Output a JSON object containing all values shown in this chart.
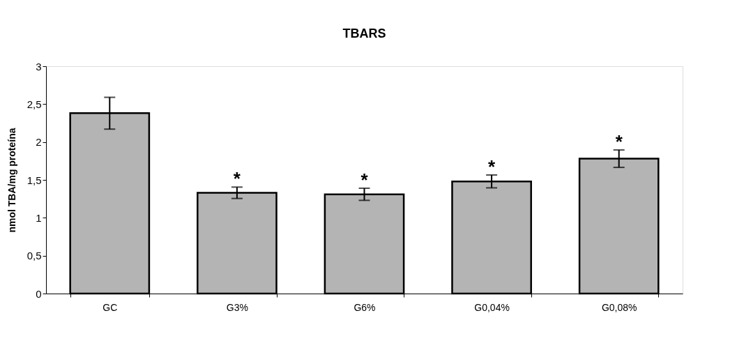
{
  "chart_data": {
    "type": "bar",
    "title": "TBARS",
    "ylabel": "nmol TBA/mg proteína",
    "categories": [
      "GC",
      "G3%",
      "G6%",
      "G0,04%",
      "G0,08%"
    ],
    "values": [
      2.38,
      1.33,
      1.31,
      1.48,
      1.78
    ],
    "errors": [
      0.21,
      0.075,
      0.08,
      0.085,
      0.115
    ],
    "color": "#b4b4b4",
    "ylim": [
      0,
      3
    ],
    "yticks": [
      0,
      {
        "value": 0.5,
        "label": "0,5"
      },
      1,
      {
        "value": 1.5,
        "label": "1,5"
      },
      2,
      {
        "value": 2.5,
        "label": "2,5"
      },
      3
    ],
    "grid": false,
    "value_labels": [
      null,
      "*",
      "*",
      "*",
      "*"
    ]
  }
}
